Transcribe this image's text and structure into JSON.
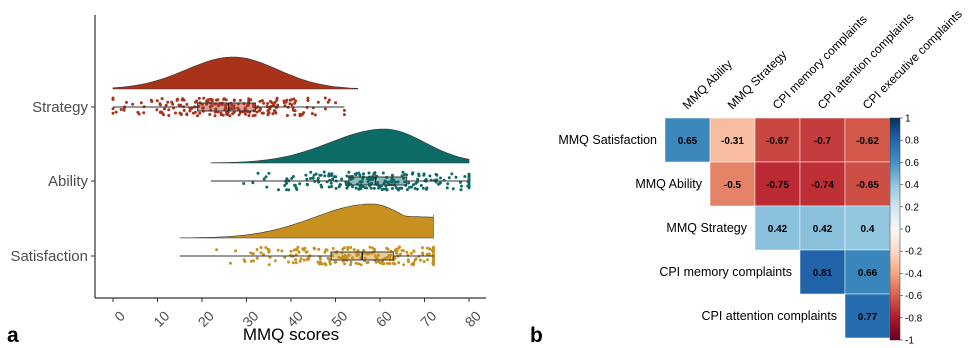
{
  "panel_a": {
    "letter": "a",
    "chart_data": {
      "type": "raincloud",
      "xlabel": "MMQ scores",
      "xlim": [
        -5,
        82
      ],
      "x_ticks": [
        0,
        10,
        20,
        30,
        40,
        50,
        60,
        70,
        80
      ],
      "categories": [
        "Strategy",
        "Ability",
        "Satisfaction"
      ],
      "series": [
        {
          "name": "Strategy",
          "color": "#a8321a",
          "min": 0,
          "q1": 19,
          "median": 26,
          "q3": 32,
          "max": 52,
          "mode": 27,
          "density_from": 0,
          "density_to": 55
        },
        {
          "name": "Ability",
          "color": "#0d6b66",
          "min": 22,
          "q1": 53,
          "median": 59,
          "q3": 66,
          "max": 80,
          "mode": 61,
          "density_from": 22,
          "density_to": 80
        },
        {
          "name": "Satisfaction",
          "color": "#c8901e",
          "min": 15,
          "q1": 49,
          "median": 56,
          "q3": 63,
          "max": 72,
          "mode": 58,
          "density_from": 15,
          "density_to": 72
        }
      ]
    }
  },
  "panel_b": {
    "letter": "b",
    "chart_data": {
      "type": "heatmap",
      "columns": [
        "MMQ Ability",
        "MMQ Strategy",
        "CPI memory complaints",
        "CPI attention complaints",
        "CPI executive complaints"
      ],
      "rows": [
        "MMQ Satisfaction",
        "MMQ Ability",
        "MMQ Strategy",
        "CPI memory complaints",
        "CPI attention complaints"
      ],
      "values": [
        [
          0.65,
          -0.31,
          -0.67,
          -0.7,
          -0.62
        ],
        [
          null,
          -0.5,
          -0.75,
          -0.74,
          -0.65
        ],
        [
          null,
          null,
          0.42,
          0.42,
          0.4
        ],
        [
          null,
          null,
          null,
          0.81,
          0.66
        ],
        [
          null,
          null,
          null,
          null,
          0.77
        ]
      ],
      "colorbar_ticks": [
        1,
        0.8,
        0.6,
        0.4,
        0.2,
        0,
        -0.2,
        -0.4,
        -0.6,
        -0.8,
        -1
      ],
      "colorbar_range": [
        -1,
        1
      ]
    }
  }
}
